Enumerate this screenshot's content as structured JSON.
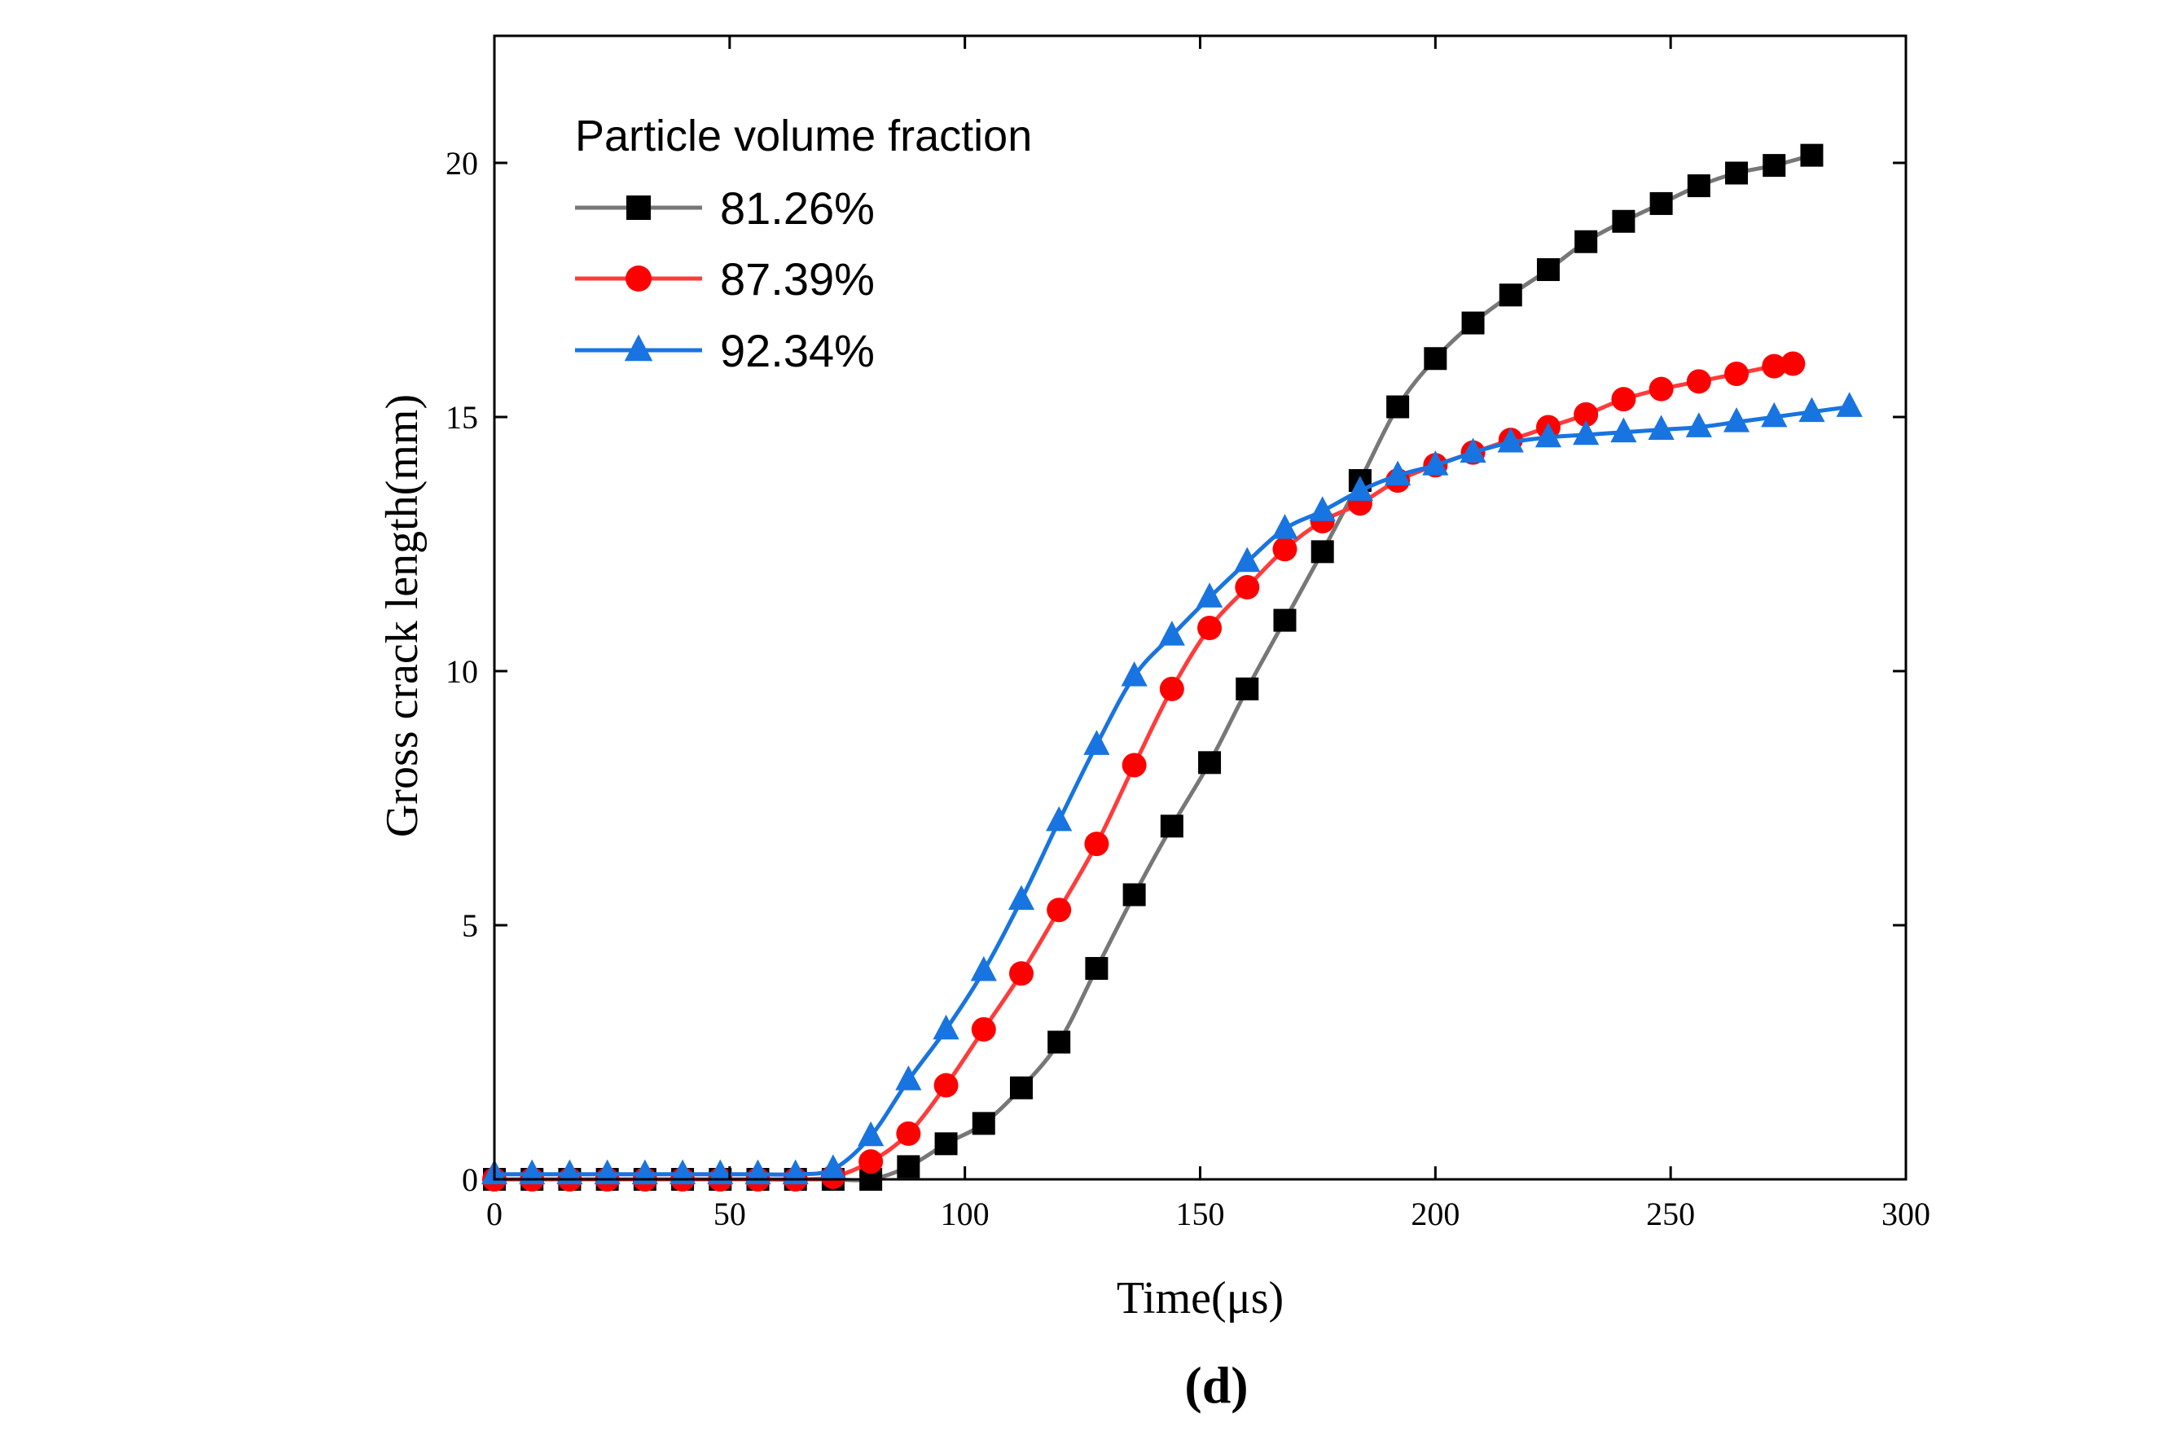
{
  "chart_data": {
    "type": "line",
    "xlabel": "Time(μs)",
    "ylabel": "Gross crack length(mm)",
    "caption": "(d)",
    "xlim": [
      0,
      300
    ],
    "ylim": [
      0,
      22.5
    ],
    "xticks": [
      0,
      50,
      100,
      150,
      200,
      250,
      300
    ],
    "yticks": [
      0,
      5,
      10,
      15,
      20
    ],
    "legend_title": "Particle volume fraction",
    "legend_position": "top-left",
    "grid": false,
    "series": [
      {
        "name": "81.26%",
        "color": "#000000",
        "line_color": "#777777",
        "marker": "square",
        "x": [
          0,
          8,
          16,
          24,
          32,
          40,
          48,
          56,
          64,
          72,
          80,
          88,
          96,
          104,
          112,
          120,
          128,
          136,
          144,
          152,
          160,
          168,
          176,
          184,
          192,
          200,
          208,
          216,
          224,
          232,
          240,
          248,
          256,
          264,
          272,
          280
        ],
        "y": [
          0,
          0,
          0,
          0,
          0,
          0,
          0,
          0,
          0,
          0,
          0,
          0.25,
          0.7,
          1.1,
          1.8,
          2.7,
          4.15,
          5.6,
          6.95,
          8.2,
          9.65,
          11.0,
          12.35,
          13.75,
          15.2,
          16.15,
          16.85,
          17.4,
          17.9,
          18.45,
          18.85,
          19.2,
          19.55,
          19.8,
          19.95,
          20.15
        ]
      },
      {
        "name": "87.39%",
        "color": "#ff0000",
        "line_color": "#ff3b3b",
        "marker": "circle",
        "x": [
          0,
          8,
          16,
          24,
          32,
          40,
          48,
          56,
          64,
          72,
          80,
          88,
          96,
          104,
          112,
          120,
          128,
          136,
          144,
          152,
          160,
          168,
          176,
          184,
          192,
          200,
          208,
          216,
          224,
          232,
          240,
          248,
          256,
          264,
          272,
          276
        ],
        "y": [
          0,
          0,
          0,
          0,
          0,
          0,
          0,
          0,
          0,
          0.05,
          0.35,
          0.9,
          1.85,
          2.95,
          4.05,
          5.3,
          6.6,
          8.15,
          9.65,
          10.85,
          11.65,
          12.4,
          12.95,
          13.3,
          13.75,
          14.05,
          14.3,
          14.55,
          14.8,
          15.05,
          15.35,
          15.55,
          15.7,
          15.85,
          16.0,
          16.05
        ]
      },
      {
        "name": "92.34%",
        "color": "#1874e0",
        "line_color": "#1874e0",
        "marker": "triangle",
        "x": [
          0,
          8,
          16,
          24,
          32,
          40,
          48,
          56,
          64,
          72,
          80,
          88,
          96,
          104,
          112,
          120,
          128,
          136,
          144,
          152,
          160,
          168,
          176,
          184,
          192,
          200,
          208,
          216,
          224,
          232,
          240,
          248,
          256,
          264,
          272,
          280,
          288
        ],
        "y": [
          0.1,
          0.1,
          0.1,
          0.1,
          0.1,
          0.1,
          0.1,
          0.1,
          0.1,
          0.2,
          0.85,
          1.95,
          2.95,
          4.1,
          5.5,
          7.05,
          8.55,
          9.9,
          10.7,
          11.45,
          12.15,
          12.8,
          13.15,
          13.55,
          13.85,
          14.05,
          14.3,
          14.5,
          14.6,
          14.65,
          14.7,
          14.75,
          14.8,
          14.9,
          15.0,
          15.1,
          15.2
        ]
      }
    ]
  }
}
